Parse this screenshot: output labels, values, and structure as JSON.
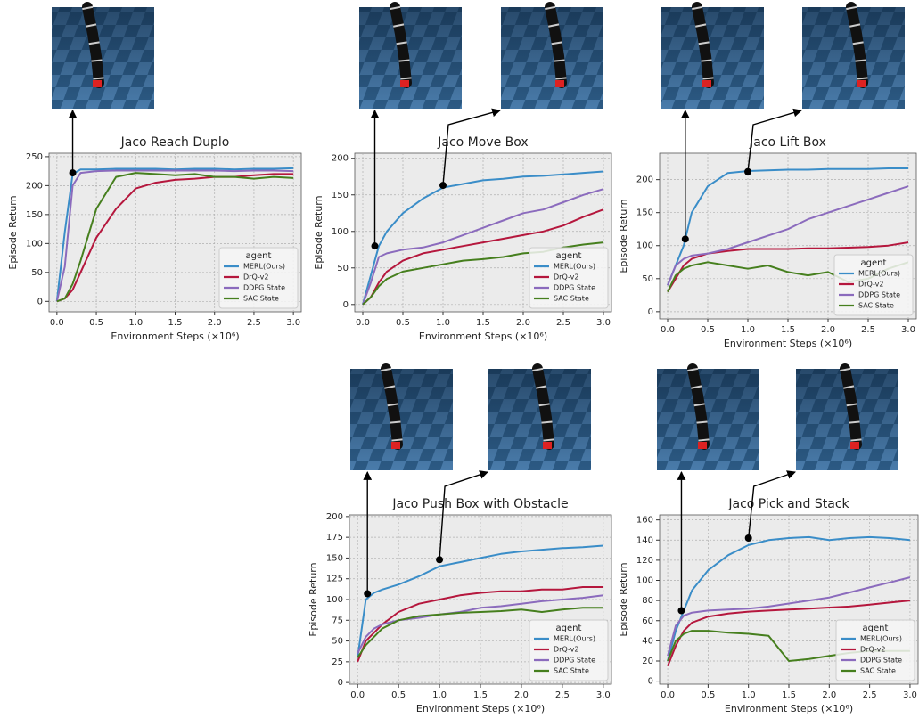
{
  "chart_data": [
    {
      "type": "line",
      "title": "Jaco Reach Duplo",
      "x_label": "Environment Steps (×10⁶)",
      "y_label": "Episode Return",
      "xlim": [
        -0.1,
        3.1
      ],
      "ylim": [
        -18,
        256
      ],
      "xticks": [
        {
          "value": 0,
          "label": "0.0"
        },
        0.5,
        {
          "value": 1,
          "label": "1.0"
        },
        1.5,
        {
          "value": 2,
          "label": "2.0"
        },
        2.5,
        {
          "value": 3,
          "label": "3.0"
        }
      ],
      "yticks": [
        0,
        50,
        100,
        150,
        200,
        250
      ],
      "grid": true,
      "legend_title": "agent",
      "legend": "lower right",
      "x": [
        0,
        0.1,
        0.2,
        0.3,
        0.5,
        0.75,
        1.0,
        1.25,
        1.5,
        1.75,
        2.0,
        2.25,
        2.5,
        2.75,
        3.0
      ],
      "series": [
        {
          "name": "MERL(Ours)",
          "color": "#3a8dc8",
          "values": [
            0,
            120,
            220,
            228,
            228,
            229,
            229,
            229,
            228,
            229,
            229,
            228,
            229,
            229,
            230
          ]
        },
        {
          "name": "DrQ-v2",
          "color": "#b5173d",
          "values": [
            0,
            5,
            20,
            50,
            110,
            160,
            195,
            205,
            210,
            212,
            215,
            215,
            218,
            220,
            220
          ]
        },
        {
          "name": "DDPG State",
          "color": "#8b6bbd",
          "values": [
            0,
            60,
            200,
            222,
            225,
            226,
            226,
            226,
            226,
            226,
            226,
            225,
            226,
            226,
            225
          ]
        },
        {
          "name": "SAC State",
          "color": "#467f1e",
          "values": [
            0,
            5,
            30,
            70,
            160,
            215,
            222,
            220,
            218,
            220,
            215,
            215,
            212,
            215,
            213
          ]
        }
      ],
      "annotations": [
        {
          "x": 0.2,
          "y": 222
        }
      ]
    },
    {
      "type": "line",
      "title": "Jaco Move Box",
      "x_label": "Environment Steps (×10⁶)",
      "y_label": "Episode Return",
      "xlim": [
        -0.1,
        3.1
      ],
      "ylim": [
        -10,
        207
      ],
      "xticks": [
        {
          "value": 0,
          "label": "0.0"
        },
        0.5,
        {
          "value": 1,
          "label": "1.0"
        },
        1.5,
        {
          "value": 2,
          "label": "2.0"
        },
        2.5,
        {
          "value": 3,
          "label": "3.0"
        }
      ],
      "yticks": [
        0,
        50,
        100,
        150,
        200
      ],
      "grid": true,
      "legend_title": "agent",
      "legend": "lower right",
      "x": [
        0,
        0.1,
        0.2,
        0.3,
        0.5,
        0.75,
        1.0,
        1.25,
        1.5,
        1.75,
        2.0,
        2.25,
        2.5,
        2.75,
        3.0
      ],
      "series": [
        {
          "name": "MERL(Ours)",
          "color": "#3a8dc8",
          "values": [
            0,
            40,
            80,
            100,
            125,
            145,
            160,
            165,
            170,
            172,
            175,
            176,
            178,
            180,
            182
          ]
        },
        {
          "name": "DrQ-v2",
          "color": "#b5173d",
          "values": [
            0,
            10,
            30,
            45,
            60,
            70,
            75,
            80,
            85,
            90,
            95,
            100,
            108,
            120,
            130
          ]
        },
        {
          "name": "DDPG State",
          "color": "#8b6bbd",
          "values": [
            0,
            30,
            65,
            70,
            75,
            78,
            85,
            95,
            105,
            115,
            125,
            130,
            140,
            150,
            158
          ]
        },
        {
          "name": "SAC State",
          "color": "#467f1e",
          "values": [
            0,
            10,
            25,
            35,
            45,
            50,
            55,
            60,
            62,
            65,
            70,
            72,
            78,
            82,
            85
          ]
        }
      ],
      "annotations": [
        {
          "x": 0.15,
          "y": 80
        },
        {
          "x": 1.0,
          "y": 163
        }
      ]
    },
    {
      "type": "line",
      "title": "Jaco Lift Box",
      "x_label": "Environment Steps (×10⁶)",
      "y_label": "Episode Return",
      "xlim": [
        -0.1,
        3.1
      ],
      "ylim": [
        -11,
        240
      ],
      "xticks": [
        {
          "value": 0,
          "label": "0.0"
        },
        0.5,
        {
          "value": 1,
          "label": "1.0"
        },
        1.5,
        {
          "value": 2,
          "label": "2.0"
        },
        2.5,
        {
          "value": 3,
          "label": "3.0"
        }
      ],
      "yticks": [
        0,
        50,
        100,
        150,
        200
      ],
      "grid": true,
      "legend_title": "agent",
      "legend": "lower right",
      "x": [
        0,
        0.1,
        0.2,
        0.3,
        0.5,
        0.75,
        1.0,
        1.25,
        1.5,
        1.75,
        2.0,
        2.25,
        2.5,
        2.75,
        3.0
      ],
      "series": [
        {
          "name": "MERL(Ours)",
          "color": "#3a8dc8",
          "values": [
            40,
            70,
            100,
            150,
            190,
            210,
            213,
            214,
            215,
            215,
            216,
            216,
            216,
            217,
            217
          ]
        },
        {
          "name": "DrQ-v2",
          "color": "#b5173d",
          "values": [
            30,
            50,
            70,
            80,
            88,
            92,
            95,
            95,
            95,
            96,
            96,
            97,
            98,
            100,
            105
          ]
        },
        {
          "name": "DDPG State",
          "color": "#8b6bbd",
          "values": [
            40,
            70,
            80,
            85,
            88,
            95,
            105,
            115,
            125,
            140,
            150,
            160,
            170,
            180,
            190
          ]
        },
        {
          "name": "SAC State",
          "color": "#467f1e",
          "values": [
            30,
            55,
            65,
            70,
            75,
            70,
            65,
            70,
            60,
            55,
            60,
            45,
            50,
            65,
            75
          ]
        }
      ],
      "annotations": [
        {
          "x": 0.22,
          "y": 110
        },
        {
          "x": 1.0,
          "y": 212
        }
      ]
    },
    {
      "type": "line",
      "title": "Jaco Push Box with Obstacle",
      "x_label": "Environment Steps (×10⁶)",
      "y_label": "Episode Return",
      "xlim": [
        -0.1,
        3.1
      ],
      "ylim": [
        -2,
        202
      ],
      "xticks": [
        {
          "value": 0,
          "label": "0.0"
        },
        0.5,
        {
          "value": 1,
          "label": "1.0"
        },
        1.5,
        {
          "value": 2,
          "label": "2.0"
        },
        2.5,
        {
          "value": 3,
          "label": "3.0"
        }
      ],
      "yticks": [
        0,
        25,
        50,
        75,
        100,
        125,
        150,
        175,
        200
      ],
      "grid": true,
      "legend_title": "agent",
      "legend": "lower right",
      "x": [
        0,
        0.1,
        0.2,
        0.3,
        0.5,
        0.75,
        1.0,
        1.25,
        1.5,
        1.75,
        2.0,
        2.25,
        2.5,
        2.75,
        3.0
      ],
      "series": [
        {
          "name": "MERL(Ours)",
          "color": "#3a8dc8",
          "values": [
            30,
            100,
            108,
            112,
            118,
            128,
            140,
            145,
            150,
            155,
            158,
            160,
            162,
            163,
            165
          ]
        },
        {
          "name": "DrQ-v2",
          "color": "#b5173d",
          "values": [
            25,
            50,
            60,
            70,
            85,
            95,
            100,
            105,
            108,
            110,
            110,
            112,
            112,
            115,
            115
          ]
        },
        {
          "name": "DDPG State",
          "color": "#8b6bbd",
          "values": [
            35,
            55,
            65,
            70,
            75,
            78,
            82,
            85,
            90,
            92,
            95,
            98,
            100,
            102,
            105
          ]
        },
        {
          "name": "SAC State",
          "color": "#467f1e",
          "values": [
            30,
            45,
            55,
            65,
            75,
            80,
            82,
            84,
            85,
            86,
            88,
            85,
            88,
            90,
            90
          ]
        }
      ],
      "annotations": [
        {
          "x": 0.12,
          "y": 107
        },
        {
          "x": 1.0,
          "y": 148
        }
      ]
    },
    {
      "type": "line",
      "title": "Jaco Pick and Stack",
      "x_label": "Environment Steps (×10⁶)",
      "y_label": "Episode Return",
      "xlim": [
        -0.1,
        3.1
      ],
      "ylim": [
        -3,
        165
      ],
      "xticks": [
        {
          "value": 0,
          "label": "0.0"
        },
        0.5,
        {
          "value": 1,
          "label": "1.0"
        },
        1.5,
        {
          "value": 2,
          "label": "2.0"
        },
        2.5,
        {
          "value": 3,
          "label": "3.0"
        }
      ],
      "yticks": [
        0,
        20,
        40,
        60,
        80,
        100,
        120,
        140,
        160
      ],
      "grid": true,
      "legend_title": "agent",
      "legend": "lower right",
      "x": [
        0,
        0.1,
        0.2,
        0.3,
        0.5,
        0.75,
        1.0,
        1.25,
        1.5,
        1.75,
        2.0,
        2.25,
        2.5,
        2.75,
        3.0
      ],
      "series": [
        {
          "name": "MERL(Ours)",
          "color": "#3a8dc8",
          "values": [
            20,
            50,
            70,
            90,
            110,
            125,
            135,
            140,
            142,
            143,
            140,
            142,
            143,
            142,
            140
          ]
        },
        {
          "name": "DrQ-v2",
          "color": "#b5173d",
          "values": [
            15,
            35,
            50,
            58,
            64,
            67,
            69,
            70,
            71,
            72,
            73,
            74,
            76,
            78,
            80
          ]
        },
        {
          "name": "DDPG State",
          "color": "#8b6bbd",
          "values": [
            25,
            55,
            65,
            68,
            70,
            71,
            72,
            74,
            77,
            80,
            83,
            88,
            93,
            98,
            103
          ]
        },
        {
          "name": "SAC State",
          "color": "#467f1e",
          "values": [
            20,
            40,
            47,
            50,
            50,
            48,
            47,
            45,
            20,
            22,
            25,
            28,
            30,
            30,
            30
          ]
        }
      ],
      "annotations": [
        {
          "x": 0.17,
          "y": 70
        },
        {
          "x": 1.0,
          "y": 142
        }
      ]
    }
  ]
}
